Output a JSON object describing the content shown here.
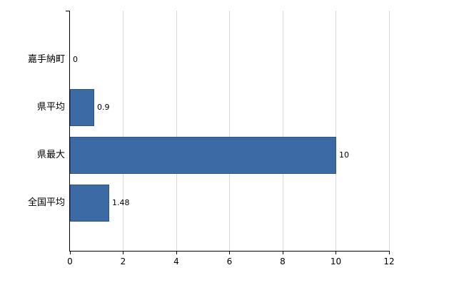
{
  "chart_data": {
    "type": "bar",
    "orientation": "horizontal",
    "title": "",
    "categories": [
      "嘉手納町",
      "県平均",
      "県最大",
      "全国平均"
    ],
    "values": [
      0,
      0.9,
      10,
      1.48
    ],
    "value_labels": [
      "0",
      "0.9",
      "10",
      "1.48"
    ],
    "xlim": [
      0,
      12
    ],
    "xticks": [
      0,
      2,
      4,
      6,
      8,
      10,
      12
    ],
    "xtick_labels": [
      "0",
      "2",
      "4",
      "6",
      "8",
      "10",
      "12"
    ],
    "grid": true,
    "legend": false,
    "legend_position": "none",
    "colors": {
      "bar": "#3C6AA5",
      "bar_border": "#2E5585",
      "gridline": "#D9D9D9",
      "axis": "#000000",
      "text": "#000000",
      "background": "#FFFFFF"
    }
  }
}
